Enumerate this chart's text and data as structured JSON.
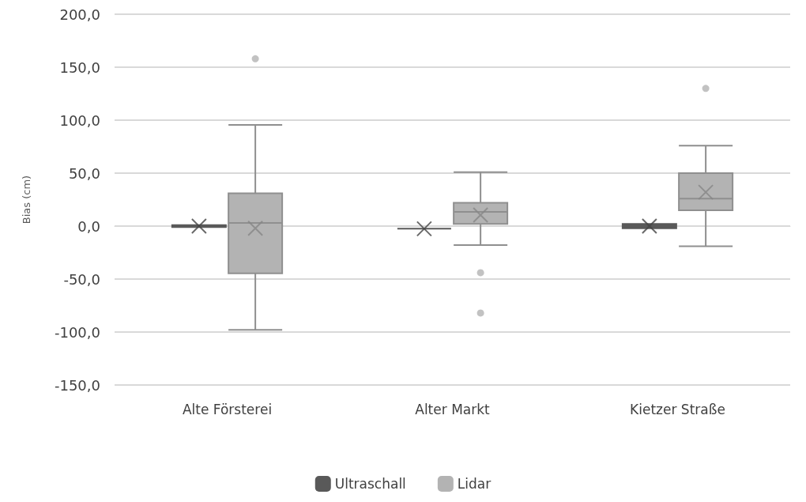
{
  "chart_data": {
    "type": "box",
    "ylabel": "Bias (cm)",
    "categories": [
      "Alte Försterei",
      "Alter Markt",
      "Kietzer Straße"
    ],
    "ylim": [
      -150,
      200
    ],
    "yticks": [
      {
        "value": -150,
        "label": "-150,0"
      },
      {
        "value": -100,
        "label": "-100,0"
      },
      {
        "value": -50,
        "label": "-50,0"
      },
      {
        "value": 0,
        "label": "0,0"
      },
      {
        "value": 50,
        "label": "50,0"
      },
      {
        "value": 100,
        "label": "100,0"
      },
      {
        "value": 150,
        "label": "150,0"
      },
      {
        "value": 200,
        "label": "200,0"
      }
    ],
    "grid": "y",
    "legend": "bottom",
    "series": [
      {
        "name": "Ultraschall",
        "color": "#595959",
        "boxes": [
          {
            "low": -1,
            "q1": -1,
            "median": 0,
            "q3": 1,
            "high": 1,
            "mean": 0
          },
          {
            "low": -2.5,
            "q1": -2.5,
            "median": -2.5,
            "q3": -2.5,
            "high": -2.5,
            "mean": -2.5
          },
          {
            "low": -2,
            "q1": -2,
            "median": 0,
            "q3": 2,
            "high": 2,
            "mean": 0
          }
        ]
      },
      {
        "name": "Lidar",
        "color": "#b3b3b3",
        "boxes": [
          {
            "low": -98,
            "q1": -44.5,
            "median": 3,
            "q3": 31,
            "high": 95.5,
            "mean": -2,
            "outliers": [
              158
            ]
          },
          {
            "low": -18,
            "q1": 2,
            "median": 13.5,
            "q3": 22,
            "high": 51,
            "mean": 10.5,
            "outliers": [
              -44,
              -82
            ]
          },
          {
            "low": -19,
            "q1": 15,
            "median": 26,
            "q3": 50,
            "high": 76,
            "mean": 32,
            "outliers": [
              130
            ]
          }
        ]
      }
    ]
  }
}
